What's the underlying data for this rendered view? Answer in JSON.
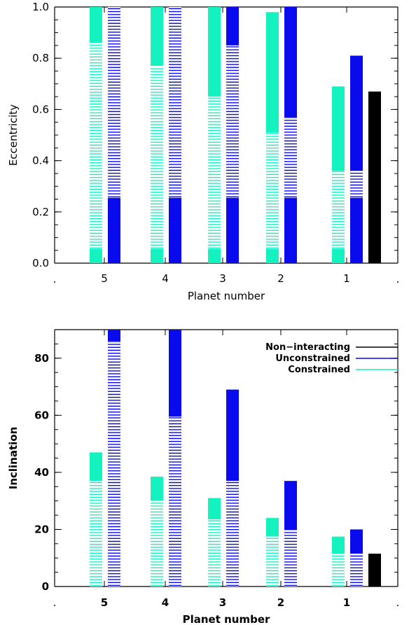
{
  "colors": {
    "constrained": "#14f2bf",
    "unconstrained": "#0a0aee",
    "non_interacting": "#000000"
  },
  "chart_data": [
    {
      "type": "bar",
      "ylabel": "Eccentricity",
      "xlabel": "Planet number",
      "ylim": [
        0,
        1.0
      ],
      "yticks": [
        0.0,
        0.2,
        0.4,
        0.6,
        0.8,
        1.0
      ],
      "ytick_labels": [
        "0.0",
        "0.2",
        "0.4",
        "0.6",
        "0.8",
        "1.0"
      ],
      "categories": [
        "5",
        "4",
        "3",
        "2",
        "1"
      ],
      "endpoint_labels": [
        ".",
        "."
      ],
      "series": [
        {
          "key": "constrained",
          "low_solid": [
            0.055,
            0.055,
            0.055,
            0.055,
            0.055
          ],
          "hatched_top": [
            0.86,
            0.77,
            0.65,
            0.51,
            0.36
          ],
          "solid_top": [
            1.0,
            1.0,
            1.0,
            0.98,
            0.69
          ]
        },
        {
          "key": "unconstrained",
          "low_solid": [
            0.255,
            0.255,
            0.255,
            0.255,
            0.255
          ],
          "hatched_top": [
            1.0,
            1.0,
            0.85,
            0.57,
            0.36
          ],
          "solid_top": [
            1.0,
            1.0,
            1.0,
            1.0,
            0.81
          ]
        },
        {
          "key": "non_interacting",
          "low_solid": [
            null,
            null,
            null,
            null,
            0.67
          ],
          "hatched_top": [
            null,
            null,
            null,
            null,
            null
          ],
          "solid_top": [
            null,
            null,
            null,
            null,
            0.67
          ]
        }
      ]
    },
    {
      "type": "bar",
      "ylabel": "Inclination",
      "xlabel": "Planet number",
      "ylim": [
        0,
        90
      ],
      "yticks": [
        0,
        20,
        40,
        60,
        80
      ],
      "ytick_labels": [
        "0",
        "20",
        "40",
        "60",
        "80"
      ],
      "categories": [
        "5",
        "4",
        "3",
        "2",
        "1"
      ],
      "endpoint_labels": [
        ".",
        "."
      ],
      "legend": {
        "placement": "top-right",
        "entries": [
          {
            "key": "non_interacting",
            "label": "Non−interacting"
          },
          {
            "key": "unconstrained",
            "label": "Unconstrained"
          },
          {
            "key": "constrained",
            "label": "Constrained"
          }
        ]
      },
      "series": [
        {
          "key": "constrained",
          "hatched_top": [
            37,
            30,
            23.5,
            17.5,
            11.5
          ],
          "solid_top": [
            47,
            38.5,
            31,
            24,
            17.5
          ]
        },
        {
          "key": "unconstrained",
          "hatched_top": [
            86,
            59.5,
            37,
            20,
            11.5
          ],
          "solid_top": [
            90,
            90,
            69,
            37,
            20
          ]
        },
        {
          "key": "non_interacting",
          "hatched_top": [
            null,
            null,
            null,
            null,
            null
          ],
          "solid_top": [
            null,
            null,
            null,
            null,
            11.5
          ]
        }
      ]
    }
  ]
}
